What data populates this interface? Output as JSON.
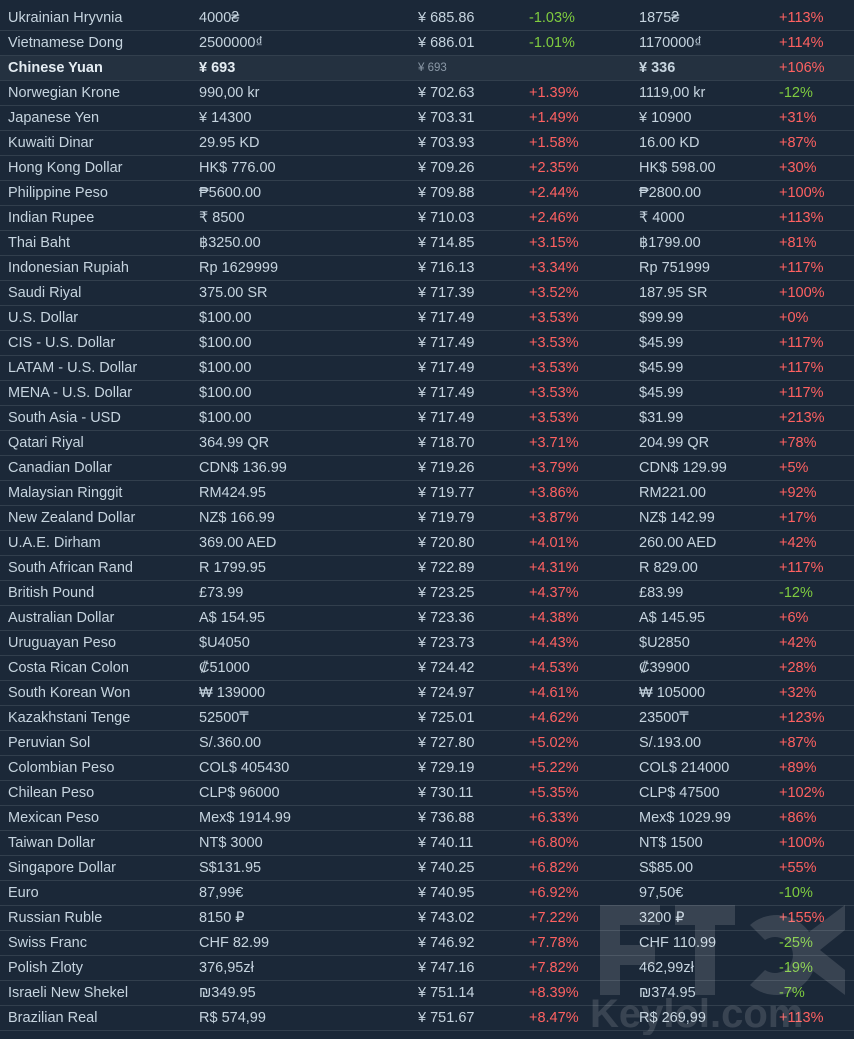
{
  "colors": {
    "background": "#1b2838",
    "increase": "#ff6161",
    "decrease": "#7fcc3f",
    "text": "#c6d4df"
  },
  "rows": [
    {
      "currency": "Ukrainian Hryvnia",
      "price": "4000₴",
      "cny": "¥ 685.86",
      "diff": "-1.03%",
      "discount_price": "1875₴",
      "discount_diff": "+113%"
    },
    {
      "currency": "Vietnamese Dong",
      "price": "2500000₫",
      "cny": "¥ 686.01",
      "diff": "-1.01%",
      "discount_price": "1170000₫",
      "discount_diff": "+114%"
    },
    {
      "currency": "Chinese Yuan",
      "price": "¥ 693",
      "cny": "¥ 693",
      "diff": "",
      "discount_price": "¥ 336",
      "discount_diff": "+106%",
      "highlight": true
    },
    {
      "currency": "Norwegian Krone",
      "price": "990,00 kr",
      "cny": "¥ 702.63",
      "diff": "+1.39%",
      "discount_price": "1119,00 kr",
      "discount_diff": "-12%"
    },
    {
      "currency": "Japanese Yen",
      "price": "¥ 14300",
      "cny": "¥ 703.31",
      "diff": "+1.49%",
      "discount_price": "¥ 10900",
      "discount_diff": "+31%"
    },
    {
      "currency": "Kuwaiti Dinar",
      "price": "29.95 KD",
      "cny": "¥ 703.93",
      "diff": "+1.58%",
      "discount_price": "16.00 KD",
      "discount_diff": "+87%"
    },
    {
      "currency": "Hong Kong Dollar",
      "price": "HK$ 776.00",
      "cny": "¥ 709.26",
      "diff": "+2.35%",
      "discount_price": "HK$ 598.00",
      "discount_diff": "+30%"
    },
    {
      "currency": "Philippine Peso",
      "price": "₱5600.00",
      "cny": "¥ 709.88",
      "diff": "+2.44%",
      "discount_price": "₱2800.00",
      "discount_diff": "+100%"
    },
    {
      "currency": "Indian Rupee",
      "price": "₹ 8500",
      "cny": "¥ 710.03",
      "diff": "+2.46%",
      "discount_price": "₹ 4000",
      "discount_diff": "+113%"
    },
    {
      "currency": "Thai Baht",
      "price": "฿3250.00",
      "cny": "¥ 714.85",
      "diff": "+3.15%",
      "discount_price": "฿1799.00",
      "discount_diff": "+81%"
    },
    {
      "currency": "Indonesian Rupiah",
      "price": "Rp 1629999",
      "cny": "¥ 716.13",
      "diff": "+3.34%",
      "discount_price": "Rp 751999",
      "discount_diff": "+117%"
    },
    {
      "currency": "Saudi Riyal",
      "price": "375.00 SR",
      "cny": "¥ 717.39",
      "diff": "+3.52%",
      "discount_price": "187.95 SR",
      "discount_diff": "+100%"
    },
    {
      "currency": "U.S. Dollar",
      "price": "$100.00",
      "cny": "¥ 717.49",
      "diff": "+3.53%",
      "discount_price": "$99.99",
      "discount_diff": "+0%"
    },
    {
      "currency": "CIS - U.S. Dollar",
      "price": "$100.00",
      "cny": "¥ 717.49",
      "diff": "+3.53%",
      "discount_price": "$45.99",
      "discount_diff": "+117%"
    },
    {
      "currency": "LATAM - U.S. Dollar",
      "price": "$100.00",
      "cny": "¥ 717.49",
      "diff": "+3.53%",
      "discount_price": "$45.99",
      "discount_diff": "+117%"
    },
    {
      "currency": "MENA - U.S. Dollar",
      "price": "$100.00",
      "cny": "¥ 717.49",
      "diff": "+3.53%",
      "discount_price": "$45.99",
      "discount_diff": "+117%"
    },
    {
      "currency": "South Asia - USD",
      "price": "$100.00",
      "cny": "¥ 717.49",
      "diff": "+3.53%",
      "discount_price": "$31.99",
      "discount_diff": "+213%"
    },
    {
      "currency": "Qatari Riyal",
      "price": "364.99 QR",
      "cny": "¥ 718.70",
      "diff": "+3.71%",
      "discount_price": "204.99 QR",
      "discount_diff": "+78%"
    },
    {
      "currency": "Canadian Dollar",
      "price": "CDN$ 136.99",
      "cny": "¥ 719.26",
      "diff": "+3.79%",
      "discount_price": "CDN$ 129.99",
      "discount_diff": "+5%"
    },
    {
      "currency": "Malaysian Ringgit",
      "price": "RM424.95",
      "cny": "¥ 719.77",
      "diff": "+3.86%",
      "discount_price": "RM221.00",
      "discount_diff": "+92%"
    },
    {
      "currency": "New Zealand Dollar",
      "price": "NZ$ 166.99",
      "cny": "¥ 719.79",
      "diff": "+3.87%",
      "discount_price": "NZ$ 142.99",
      "discount_diff": "+17%"
    },
    {
      "currency": "U.A.E. Dirham",
      "price": "369.00 AED",
      "cny": "¥ 720.80",
      "diff": "+4.01%",
      "discount_price": "260.00 AED",
      "discount_diff": "+42%"
    },
    {
      "currency": "South African Rand",
      "price": "R 1799.95",
      "cny": "¥ 722.89",
      "diff": "+4.31%",
      "discount_price": "R 829.00",
      "discount_diff": "+117%"
    },
    {
      "currency": "British Pound",
      "price": "£73.99",
      "cny": "¥ 723.25",
      "diff": "+4.37%",
      "discount_price": "£83.99",
      "discount_diff": "-12%"
    },
    {
      "currency": "Australian Dollar",
      "price": "A$ 154.95",
      "cny": "¥ 723.36",
      "diff": "+4.38%",
      "discount_price": "A$ 145.95",
      "discount_diff": "+6%"
    },
    {
      "currency": "Uruguayan Peso",
      "price": "$U4050",
      "cny": "¥ 723.73",
      "diff": "+4.43%",
      "discount_price": "$U2850",
      "discount_diff": "+42%"
    },
    {
      "currency": "Costa Rican Colon",
      "price": "₡51000",
      "cny": "¥ 724.42",
      "diff": "+4.53%",
      "discount_price": "₡39900",
      "discount_diff": "+28%"
    },
    {
      "currency": "South Korean Won",
      "price": "₩ 139000",
      "cny": "¥ 724.97",
      "diff": "+4.61%",
      "discount_price": "₩ 105000",
      "discount_diff": "+32%"
    },
    {
      "currency": "Kazakhstani Tenge",
      "price": "52500₸",
      "cny": "¥ 725.01",
      "diff": "+4.62%",
      "discount_price": "23500₸",
      "discount_diff": "+123%"
    },
    {
      "currency": "Peruvian Sol",
      "price": "S/.360.00",
      "cny": "¥ 727.80",
      "diff": "+5.02%",
      "discount_price": "S/.193.00",
      "discount_diff": "+87%"
    },
    {
      "currency": "Colombian Peso",
      "price": "COL$ 405430",
      "cny": "¥ 729.19",
      "diff": "+5.22%",
      "discount_price": "COL$ 214000",
      "discount_diff": "+89%"
    },
    {
      "currency": "Chilean Peso",
      "price": "CLP$ 96000",
      "cny": "¥ 730.11",
      "diff": "+5.35%",
      "discount_price": "CLP$ 47500",
      "discount_diff": "+102%"
    },
    {
      "currency": "Mexican Peso",
      "price": "Mex$ 1914.99",
      "cny": "¥ 736.88",
      "diff": "+6.33%",
      "discount_price": "Mex$ 1029.99",
      "discount_diff": "+86%"
    },
    {
      "currency": "Taiwan Dollar",
      "price": "NT$ 3000",
      "cny": "¥ 740.11",
      "diff": "+6.80%",
      "discount_price": "NT$ 1500",
      "discount_diff": "+100%"
    },
    {
      "currency": "Singapore Dollar",
      "price": "S$131.95",
      "cny": "¥ 740.25",
      "diff": "+6.82%",
      "discount_price": "S$85.00",
      "discount_diff": "+55%"
    },
    {
      "currency": "Euro",
      "price": "87,99€",
      "cny": "¥ 740.95",
      "diff": "+6.92%",
      "discount_price": "97,50€",
      "discount_diff": "-10%"
    },
    {
      "currency": "Russian Ruble",
      "price": "8150 ₽",
      "cny": "¥ 743.02",
      "diff": "+7.22%",
      "discount_price": "3200 ₽",
      "discount_diff": "+155%"
    },
    {
      "currency": "Swiss Franc",
      "price": "CHF 82.99",
      "cny": "¥ 746.92",
      "diff": "+7.78%",
      "discount_price": "CHF 110.99",
      "discount_diff": "-25%"
    },
    {
      "currency": "Polish Zloty",
      "price": "376,95zł",
      "cny": "¥ 747.16",
      "diff": "+7.82%",
      "discount_price": "462,99zł",
      "discount_diff": "-19%"
    },
    {
      "currency": "Israeli New Shekel",
      "price": "₪349.95",
      "cny": "¥ 751.14",
      "diff": "+8.39%",
      "discount_price": "₪374.95",
      "discount_diff": "-7%"
    },
    {
      "currency": "Brazilian Real",
      "price": "R$ 574,99",
      "cny": "¥ 751.67",
      "diff": "+8.47%",
      "discount_price": "R$ 269,99",
      "discount_diff": "+113%"
    }
  ],
  "watermark": {
    "text": "Keylol.com",
    "logo": "keylol-logo-icon"
  }
}
